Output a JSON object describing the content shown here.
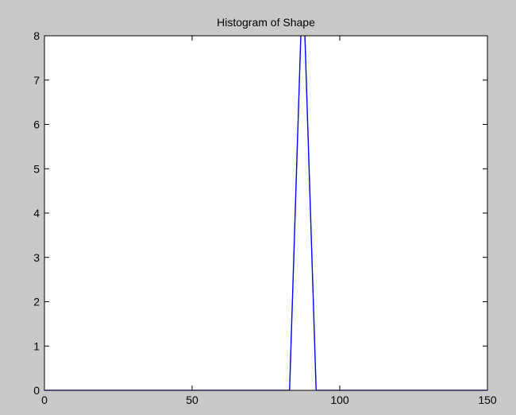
{
  "chart_data": {
    "type": "line",
    "title": "Histogram of Shape",
    "xlabel": "",
    "ylabel": "",
    "xlim": [
      0,
      150
    ],
    "ylim": [
      0,
      8
    ],
    "xticks": [
      0,
      50,
      100,
      150
    ],
    "yticks": [
      0,
      1,
      2,
      3,
      4,
      5,
      6,
      7,
      8
    ],
    "grid": false,
    "series": [
      {
        "color": "#0000ff",
        "x": [
          0,
          83,
          87,
          88,
          92,
          150
        ],
        "y": [
          0,
          0,
          8.4,
          8.4,
          0,
          0
        ]
      }
    ]
  },
  "colors": {
    "figure_background": "#c8c8c8",
    "axes_background": "#ffffff",
    "line": "#0000ff"
  }
}
